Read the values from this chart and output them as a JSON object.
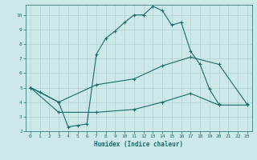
{
  "xlabel": "Humidex (Indice chaleur)",
  "bg_color": "#cce8e8",
  "grid_color": "#b0d0d0",
  "line_color": "#1a6b6b",
  "line1_x": [
    0,
    1,
    3,
    4,
    5,
    6,
    7,
    8,
    9,
    10,
    11,
    12,
    13,
    14,
    15,
    16,
    17,
    18,
    19,
    20
  ],
  "line1_y": [
    5.0,
    4.7,
    4.0,
    2.3,
    2.4,
    2.5,
    7.3,
    8.4,
    8.9,
    9.5,
    10.0,
    10.0,
    10.6,
    10.3,
    9.3,
    9.5,
    7.5,
    6.6,
    4.9,
    3.85
  ],
  "line2_x": [
    0,
    3,
    7,
    11,
    14,
    17,
    20,
    23
  ],
  "line2_y": [
    5.0,
    4.0,
    5.2,
    5.6,
    6.5,
    7.1,
    6.6,
    3.85
  ],
  "line3_x": [
    0,
    3,
    7,
    11,
    14,
    17,
    20,
    23
  ],
  "line3_y": [
    5.0,
    3.3,
    3.3,
    3.5,
    4.0,
    4.6,
    3.8,
    3.8
  ],
  "xlim": [
    -0.5,
    23.5
  ],
  "ylim": [
    2,
    10.7
  ],
  "xticks": [
    0,
    1,
    2,
    3,
    4,
    5,
    6,
    7,
    8,
    9,
    10,
    11,
    12,
    13,
    14,
    15,
    16,
    17,
    18,
    19,
    20,
    21,
    22,
    23
  ],
  "yticks": [
    2,
    3,
    4,
    5,
    6,
    7,
    8,
    9,
    10
  ]
}
